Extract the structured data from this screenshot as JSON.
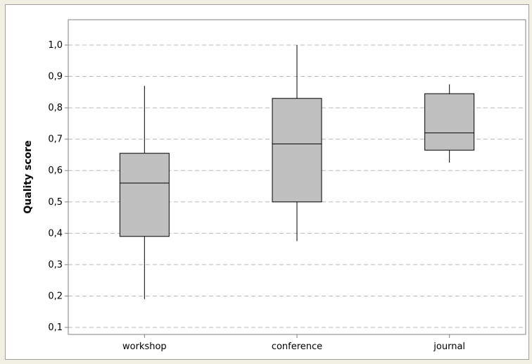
{
  "chart_data": {
    "type": "boxplot",
    "title": "",
    "xlabel": "",
    "ylabel": "Quality score",
    "ylim": [
      0.1,
      1.0
    ],
    "yticks": [
      "0,1",
      "0,2",
      "0,3",
      "0,4",
      "0,5",
      "0,6",
      "0,7",
      "0,8",
      "0,9",
      "1,0"
    ],
    "ytick_values": [
      0.1,
      0.2,
      0.3,
      0.4,
      0.5,
      0.6,
      0.7,
      0.8,
      0.9,
      1.0
    ],
    "grid": "horizontal-dashed",
    "categories": [
      "workshop",
      "conference",
      "journal"
    ],
    "boxes": [
      {
        "category": "workshop",
        "min": 0.19,
        "q1": 0.39,
        "median": 0.56,
        "q3": 0.655,
        "max": 0.87
      },
      {
        "category": "conference",
        "min": 0.375,
        "q1": 0.5,
        "median": 0.685,
        "q3": 0.83,
        "max": 1.0
      },
      {
        "category": "journal",
        "min": 0.625,
        "q1": 0.665,
        "median": 0.72,
        "q3": 0.845,
        "max": 0.875
      }
    ],
    "colors": {
      "box_fill": "#c0c0c0",
      "stroke": "#000000",
      "grid": "#b8b8b8",
      "axis": "#808080",
      "text": "#000000"
    }
  }
}
